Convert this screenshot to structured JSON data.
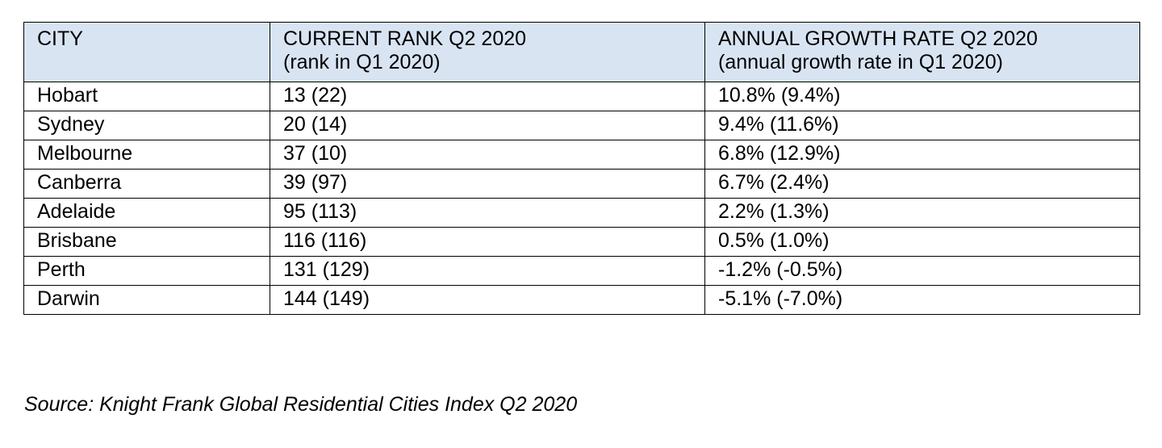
{
  "chart_data": {
    "type": "table",
    "columns": [
      {
        "line1": "CITY",
        "line2": ""
      },
      {
        "line1": "CURRENT RANK Q2 2020",
        "line2": "(rank in Q1 2020)"
      },
      {
        "line1": "ANNUAL GROWTH RATE Q2 2020",
        "line2": "(annual growth rate in Q1 2020)"
      }
    ],
    "rows": [
      {
        "city": "Hobart",
        "rank": "13 (22)",
        "growth": "10.8% (9.4%)"
      },
      {
        "city": "Sydney",
        "rank": "20 (14)",
        "growth": "9.4% (11.6%)"
      },
      {
        "city": "Melbourne",
        "rank": "37 (10)",
        "growth": "6.8% (12.9%)"
      },
      {
        "city": "Canberra",
        "rank": "39 (97)",
        "growth": "6.7% (2.4%)"
      },
      {
        "city": "Adelaide",
        "rank": "95 (113)",
        "growth": "2.2% (1.3%)"
      },
      {
        "city": "Brisbane",
        "rank": "116 (116)",
        "growth": "0.5% (1.0%)"
      },
      {
        "city": "Perth",
        "rank": "131 (129)",
        "growth": "-1.2% (-0.5%)"
      },
      {
        "city": "Darwin",
        "rank": "144 (149)",
        "growth": "-5.1% (-7.0%)"
      }
    ],
    "header_background": "#d9e4f3"
  },
  "source": "Source: Knight Frank Global Residential Cities Index Q2 2020"
}
